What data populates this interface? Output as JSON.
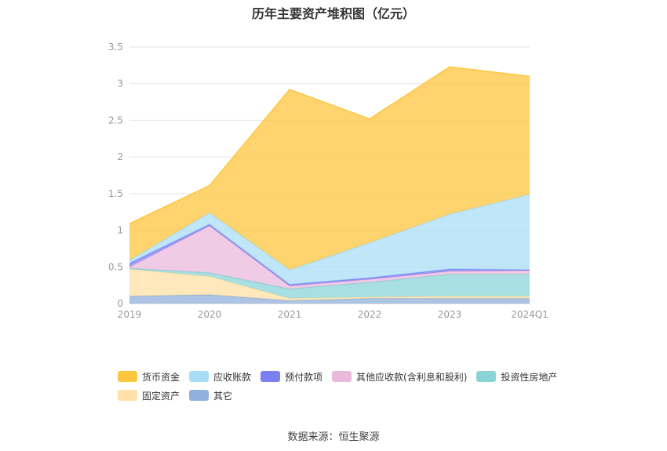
{
  "chart_data": {
    "type": "area",
    "stacked": true,
    "title": "历年主要资产堆积图（亿元）",
    "categories": [
      "2019",
      "2020",
      "2021",
      "2022",
      "2023",
      "2024Q1"
    ],
    "y_ticks": [
      "0",
      "0.5",
      "1",
      "1.5",
      "2",
      "2.5",
      "3",
      "3.5"
    ],
    "ylim": [
      0,
      3.5
    ],
    "grid": true,
    "legend_position": "bottom",
    "series": [
      {
        "name": "其它",
        "color": "#92b0dc",
        "values": [
          0.1,
          0.12,
          0.04,
          0.07,
          0.07,
          0.07
        ]
      },
      {
        "name": "固定资产",
        "color": "#ffe0a6",
        "values": [
          0.37,
          0.25,
          0.03,
          0.02,
          0.03,
          0.03
        ]
      },
      {
        "name": "投资性房地产",
        "color": "#8ad4d8",
        "values": [
          0.01,
          0.05,
          0.13,
          0.2,
          0.3,
          0.3
        ]
      },
      {
        "name": "其他应收款(含利息和股利)",
        "color": "#eab9dc",
        "values": [
          0.02,
          0.64,
          0.04,
          0.04,
          0.04,
          0.05
        ]
      },
      {
        "name": "预付款项",
        "color": "#7b7ff2",
        "values": [
          0.05,
          0.02,
          0.02,
          0.02,
          0.03,
          0.01
        ]
      },
      {
        "name": "应收账款",
        "color": "#a9ddf7",
        "values": [
          0.04,
          0.16,
          0.2,
          0.48,
          0.75,
          1.03
        ]
      },
      {
        "name": "货币资金",
        "color": "#ffc53d",
        "values": [
          0.5,
          0.37,
          2.46,
          1.69,
          2.01,
          1.61
        ]
      }
    ],
    "legend_order": [
      "货币资金",
      "应收账款",
      "预付款项",
      "其他应收款(含利息和股利)",
      "投资性房地产",
      "固定资产",
      "其它"
    ]
  },
  "source_text": "数据来源：恒生聚源"
}
